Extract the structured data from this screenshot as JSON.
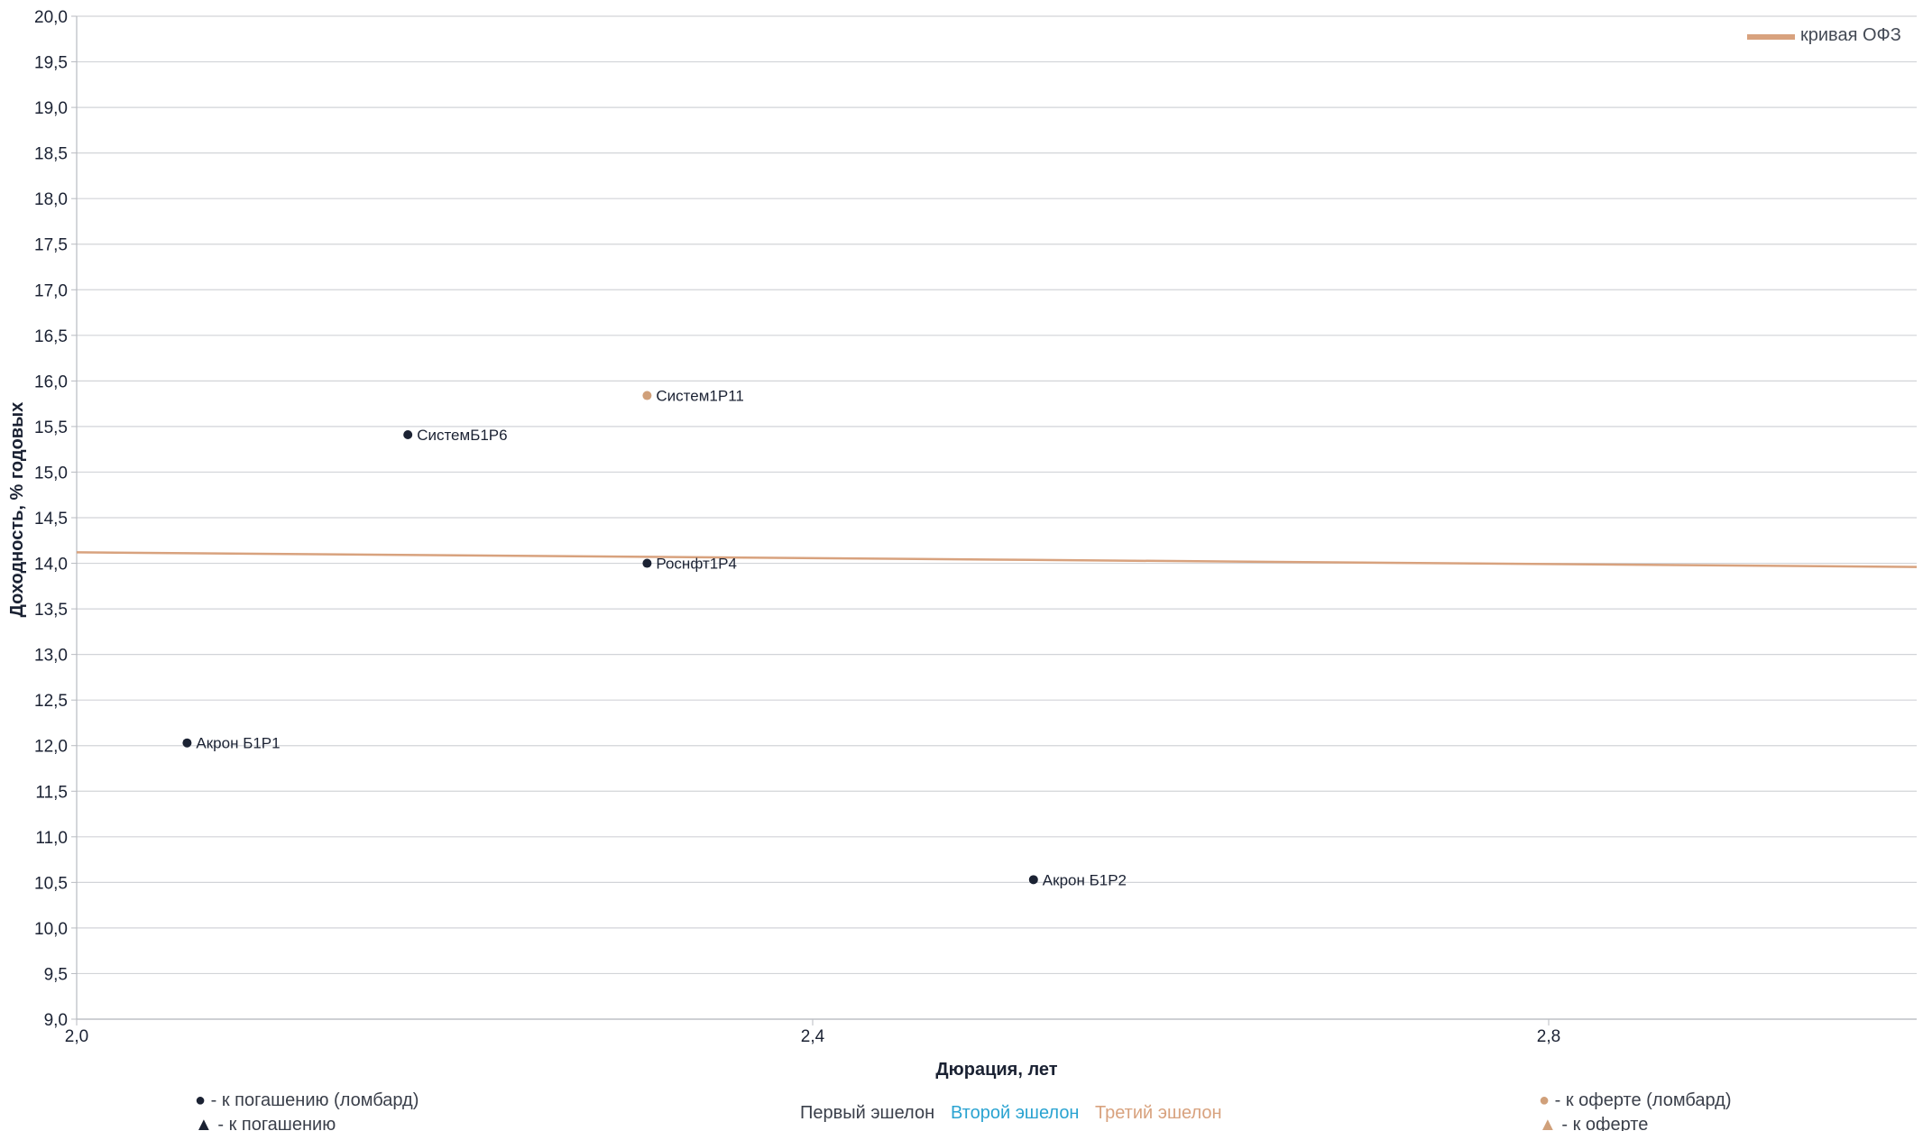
{
  "chart_data": {
    "type": "scatter",
    "xlabel": "Дюрация, лет",
    "ylabel": "Доходность, % годовых",
    "xlim": [
      2.0,
      3.0
    ],
    "ylim": [
      9.0,
      20.0
    ],
    "x_ticks": [
      "2,0",
      "2,4",
      "2,8"
    ],
    "x_tick_values": [
      2.0,
      2.4,
      2.8
    ],
    "y_ticks": [
      "9,0",
      "9,5",
      "10,0",
      "10,5",
      "11,0",
      "11,5",
      "12,0",
      "12,5",
      "13,0",
      "13,5",
      "14,0",
      "14,5",
      "15,0",
      "15,5",
      "16,0",
      "16,5",
      "17,0",
      "17,5",
      "18,0",
      "18,5",
      "19,0",
      "19,5",
      "20,0"
    ],
    "y_tick_values": [
      9.0,
      9.5,
      10.0,
      10.5,
      11.0,
      11.5,
      12.0,
      12.5,
      13.0,
      13.5,
      14.0,
      14.5,
      15.0,
      15.5,
      16.0,
      16.5,
      17.0,
      17.5,
      18.0,
      18.5,
      19.0,
      19.5,
      20.0
    ],
    "grid": "horizontal",
    "points": [
      {
        "label": "Акрон Б1Р1",
        "x": 2.06,
        "y": 12.03,
        "category": "k_pogasheniyu_lombard",
        "color": "#1b2233"
      },
      {
        "label": "СистемБ1Р6",
        "x": 2.18,
        "y": 15.41,
        "category": "k_pogasheniyu_lombard",
        "color": "#1b2233"
      },
      {
        "label": "Систем1Р11",
        "x": 2.31,
        "y": 15.84,
        "category": "k_oferte_lombard",
        "color": "#d0a07a"
      },
      {
        "label": "Роснфт1Р4",
        "x": 2.31,
        "y": 14.0,
        "category": "k_pogasheniyu_lombard",
        "color": "#1b2233"
      },
      {
        "label": "Акрон Б1Р2",
        "x": 2.52,
        "y": 10.53,
        "category": "k_pogasheniyu_lombard",
        "color": "#1b2233"
      }
    ],
    "ofz_curve": {
      "name": "кривая ОФЗ",
      "color": "#d8a27e",
      "x": [
        2.0,
        2.5,
        3.0
      ],
      "y": [
        14.12,
        14.04,
        13.96
      ]
    },
    "legend": {
      "ofz": "кривая ОФЗ",
      "left_1": "● - к погашению (ломбард)",
      "left_2": "▲ - к погашению",
      "right_1": "● - к оферте (ломбард)",
      "right_2": "▲ - к оферте",
      "echelon_1": "Первый эшелон",
      "echelon_2": "Второй эшелон",
      "echelon_3": "Третий эшелон",
      "echelon_1_color": "#3a3f4a",
      "echelon_2_color": "#2aa3d1",
      "echelon_3_color": "#d8a27e",
      "dark_color": "#1b2233",
      "tan_color": "#d0a07a"
    }
  }
}
